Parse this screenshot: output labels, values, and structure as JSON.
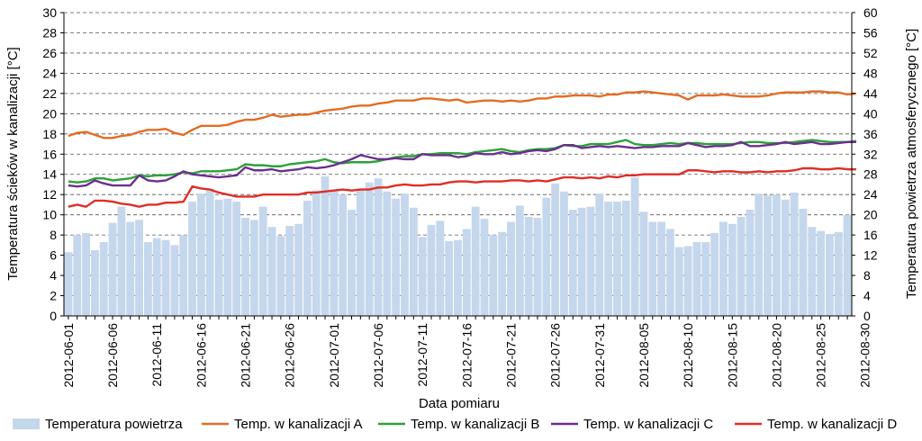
{
  "chart_data": {
    "type": "bar+line",
    "title": "",
    "xlabel": "Data pomiaru",
    "ylabel_left": "Temperatura ścieków w kanalizacji [°C]",
    "ylabel_right": "Temperatura powietrza atmosferycznego [°C]",
    "ylim_left": [
      0,
      30
    ],
    "ylim_right": [
      0,
      60
    ],
    "yticks_left": [
      "0",
      "2",
      "4",
      "6",
      "8",
      "10",
      "12",
      "14",
      "16",
      "18",
      "20",
      "22",
      "24",
      "26",
      "28",
      "30"
    ],
    "yticks_right": [
      "0",
      "4",
      "8",
      "12",
      "16",
      "20",
      "24",
      "28",
      "32",
      "36",
      "40",
      "44",
      "48",
      "52",
      "56",
      "60"
    ],
    "grid": "horizontal dashed at each left tick",
    "legend_position": "bottom",
    "x_tick_labels": [
      "2012-06-01",
      "2012-06-06",
      "2012-06-11",
      "2012-06-16",
      "2012-06-21",
      "2012-06-26",
      "2012-07-01",
      "2012-07-06",
      "2012-07-11",
      "2012-07-16",
      "2012-07-21",
      "2012-07-26",
      "2012-07-31",
      "2012-08-05",
      "2012-08-10",
      "2012-08-15",
      "2012-08-20",
      "2012-08-25",
      "2012-08-30"
    ],
    "series_bar": {
      "name": "Temperatura powietrza",
      "axis": "right",
      "color": "#c5d7ec",
      "values": [
        12.6,
        16,
        16.4,
        13,
        14.6,
        18.4,
        21.6,
        18.6,
        19,
        14.6,
        15.4,
        15,
        14,
        16,
        22.6,
        24.2,
        25.2,
        23,
        23.2,
        22.6,
        19.4,
        19,
        21.6,
        17.6,
        15.8,
        17.8,
        18.2,
        22.8,
        24.8,
        27.6,
        25,
        24,
        21,
        25.2,
        26.4,
        27.2,
        24.6,
        23.2,
        24.2,
        21.4,
        15.6,
        18,
        18.8,
        14.8,
        15,
        17.2,
        21.6,
        19.2,
        16,
        16.6,
        18.6,
        21.8,
        19.6,
        19.4,
        23.4,
        26.2,
        24.6,
        21,
        21.4,
        21.6,
        24.2,
        22.6,
        22.6,
        22.8,
        27.4,
        20.6,
        18.6,
        18.6,
        17.2,
        13.6,
        13.8,
        14.6,
        14.6,
        16.4,
        18.6,
        18.2,
        19.6,
        21,
        24.2,
        23.8,
        24,
        23,
        24.4,
        21.2,
        17.6,
        16.8,
        16.2,
        16.6,
        20
      ]
    },
    "series": [
      {
        "name": "Temp. w kanalizacji A",
        "axis": "left",
        "color": "#e46c22",
        "values": [
          17.8,
          18.1,
          18.2,
          17.9,
          17.6,
          17.6,
          17.8,
          17.9,
          18.2,
          18.4,
          18.4,
          18.5,
          18.1,
          17.9,
          18.4,
          18.8,
          18.8,
          18.8,
          18.9,
          19.2,
          19.4,
          19.4,
          19.6,
          19.9,
          19.7,
          19.8,
          19.9,
          19.9,
          20.1,
          20.3,
          20.4,
          20.5,
          20.7,
          20.8,
          20.8,
          21,
          21.1,
          21.3,
          21.3,
          21.3,
          21.5,
          21.5,
          21.4,
          21.3,
          21.4,
          21.1,
          21.2,
          21.3,
          21.3,
          21.2,
          21.3,
          21.2,
          21.3,
          21.5,
          21.5,
          21.7,
          21.7,
          21.8,
          21.8,
          21.8,
          21.7,
          21.9,
          21.9,
          22.1,
          22.1,
          22.2,
          22.1,
          22,
          21.9,
          21.8,
          21.4,
          21.8,
          21.8,
          21.8,
          21.9,
          21.8,
          21.7,
          21.7,
          21.7,
          21.8,
          22,
          22.1,
          22.1,
          22.1,
          22.2,
          22.2,
          22.1,
          22.1,
          21.9,
          22
        ]
      },
      {
        "name": "Temp. w kanalizacji B",
        "axis": "left",
        "color": "#2ca137",
        "values": [
          13.3,
          13.2,
          13.3,
          13.6,
          13.6,
          13.4,
          13.5,
          13.6,
          13.9,
          13.8,
          13.9,
          13.9,
          14,
          14.2,
          14.1,
          14.3,
          14.3,
          14.3,
          14.4,
          14.5,
          15,
          14.9,
          14.9,
          14.8,
          14.8,
          15,
          15.1,
          15.2,
          15.3,
          15.5,
          15.2,
          15.1,
          15.2,
          15.2,
          15.2,
          15.3,
          15.5,
          15.7,
          15.8,
          15.8,
          16,
          16,
          16.1,
          16.1,
          16.1,
          16,
          16.2,
          16.3,
          16.4,
          16.5,
          16.3,
          16.2,
          16.4,
          16.5,
          16.5,
          16.6,
          16.9,
          16.8,
          16.8,
          17,
          17,
          17,
          17.2,
          17.4,
          17,
          16.9,
          16.9,
          17,
          17.1,
          17,
          17.1,
          17.1,
          17,
          17,
          17,
          17,
          17.1,
          17.2,
          17.2,
          17.1,
          17.1,
          17.1,
          17.2,
          17.3,
          17.4,
          17.3,
          17.2,
          17.2,
          17.2,
          17.3
        ]
      },
      {
        "name": "Temp. w kanalizacji C",
        "axis": "left",
        "color": "#6b2f8f",
        "values": [
          12.9,
          12.8,
          12.9,
          13.4,
          13.1,
          12.9,
          12.9,
          12.9,
          13.9,
          13.4,
          13.3,
          13.4,
          13.8,
          14.3,
          14,
          13.9,
          13.8,
          13.7,
          13.8,
          13.9,
          14.7,
          14.4,
          14.4,
          14.5,
          14.3,
          14.4,
          14.5,
          14.7,
          14.6,
          14.7,
          14.9,
          15.2,
          15.5,
          15.9,
          15.7,
          15.5,
          15.5,
          15.6,
          15.5,
          15.5,
          16,
          15.9,
          15.9,
          15.9,
          15.7,
          15.8,
          16.1,
          16,
          16,
          16.2,
          16,
          16.1,
          16.3,
          16.4,
          16.3,
          16.5,
          16.9,
          16.9,
          16.6,
          16.7,
          16.8,
          16.7,
          16.8,
          16.7,
          16.6,
          16.7,
          16.7,
          16.8,
          16.8,
          16.8,
          17.1,
          16.9,
          16.7,
          16.8,
          16.8,
          16.9,
          17.2,
          16.8,
          16.8,
          16.9,
          17,
          17.2,
          17,
          17.1,
          17.2,
          17,
          17,
          17.1,
          17.2,
          17.2
        ]
      },
      {
        "name": "Temp. w kanalizacji D",
        "axis": "left",
        "color": "#e02d28",
        "values": [
          10.8,
          11,
          10.8,
          11.4,
          11.4,
          11.3,
          11.1,
          11,
          10.8,
          11,
          11,
          11.2,
          11.2,
          11.3,
          12.8,
          12.6,
          12.5,
          12.2,
          12,
          11.8,
          11.8,
          11.8,
          12,
          12,
          12,
          12,
          12,
          12.2,
          12.2,
          12.3,
          12.4,
          12.5,
          12.4,
          12.5,
          12.5,
          12.7,
          12.7,
          12.9,
          13,
          12.9,
          12.9,
          13,
          13,
          13.2,
          13.3,
          13.3,
          13.2,
          13.3,
          13.3,
          13.3,
          13.4,
          13.4,
          13.3,
          13.4,
          13.3,
          13.5,
          13.7,
          13.7,
          13.6,
          13.7,
          13.6,
          13.8,
          13.7,
          13.9,
          13.9,
          14,
          14,
          14,
          14,
          14,
          14.4,
          14.4,
          14.3,
          14.2,
          14.3,
          14.3,
          14.2,
          14.2,
          14.3,
          14.2,
          14.3,
          14.3,
          14.4,
          14.6,
          14.6,
          14.5,
          14.5,
          14.6,
          14.5,
          14.5
        ]
      }
    ]
  }
}
